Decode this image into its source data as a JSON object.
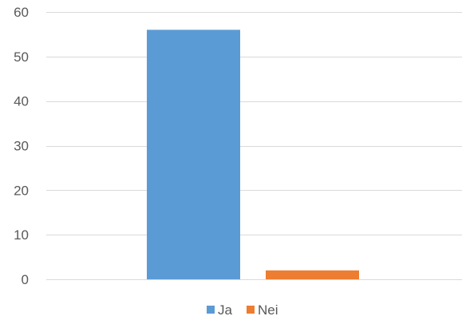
{
  "chart_data": {
    "type": "bar",
    "title": "",
    "xlabel": "",
    "ylabel": "",
    "ylim": [
      0,
      60
    ],
    "y_ticks": [
      0,
      10,
      20,
      30,
      40,
      50,
      60
    ],
    "grid": true,
    "legend_position": "bottom",
    "series": [
      {
        "name": "Ja",
        "value": 56,
        "color": "#5b9bd5"
      },
      {
        "name": "Nei",
        "value": 2,
        "color": "#ed7d31"
      }
    ]
  },
  "colors": {
    "gridline": "#d9d9d9",
    "axis_text": "#595959"
  }
}
